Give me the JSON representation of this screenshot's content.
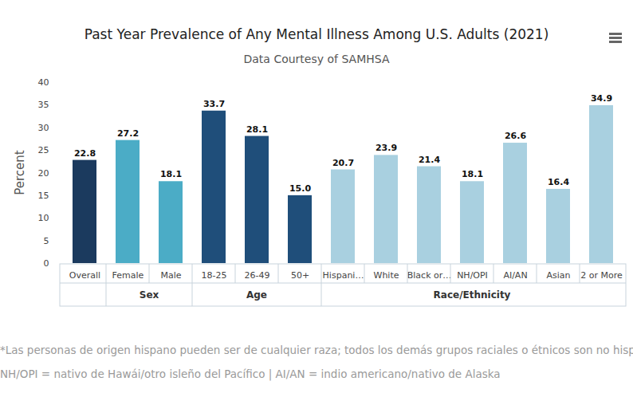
{
  "chart_data": {
    "type": "bar",
    "title": "Past Year Prevalence of Any Mental Illness Among U.S. Adults (2021)",
    "subtitle": "Data Courtesy of SAMHSA",
    "y_label": "Percent",
    "categories": [
      "Overall",
      "Female",
      "Male",
      "18-25",
      "26-49",
      "50+",
      "Hispani…",
      "White",
      "Black or…",
      "NH/OPI",
      "AI/AN",
      "Asian",
      "2 or More"
    ],
    "groups": [
      null,
      "Sex",
      "Sex",
      "Age",
      "Age",
      "Age",
      "Race/Ethnicity",
      "Race/Ethnicity",
      "Race/Ethnicity",
      "Race/Ethnicity",
      "Race/Ethnicity",
      "Race/Ethnicity",
      "Race/Ethnicity"
    ],
    "values": [
      22.8,
      27.2,
      18.1,
      33.7,
      28.1,
      15,
      20.7,
      23.9,
      21.4,
      18.1,
      26.6,
      16.4,
      34.9
    ],
    "value_labels": [
      "22.8",
      "27.2",
      "18.1",
      "33.7",
      "28.1",
      "15.0",
      "20.7",
      "23.9",
      "21.4",
      "18.1",
      "26.6",
      "16.4",
      "34.9"
    ],
    "colors": [
      "#1b3a5e",
      "#4bacc6",
      "#4bacc6",
      "#1f4e7a",
      "#1f4e7a",
      "#1f4e7a",
      "#a9d0e0",
      "#a9d0e0",
      "#a9d0e0",
      "#a9d0e0",
      "#a9d0e0",
      "#a9d0e0",
      "#a9d0e0"
    ],
    "ylim": [
      0,
      40
    ],
    "yticks": [
      0,
      5,
      10,
      15,
      20,
      25,
      30,
      35,
      40
    ],
    "grid": false,
    "data_labels": true,
    "notes": [
      "*Las personas de origen hispano pueden ser de cualquier raza; todos los demás grupos raciales o étnicos son no hispanos.",
      "NH/OPI = nativo de Hawái/otro isleño del Pacífico | AI/AN = indio americano/nativo de Alaska"
    ]
  }
}
